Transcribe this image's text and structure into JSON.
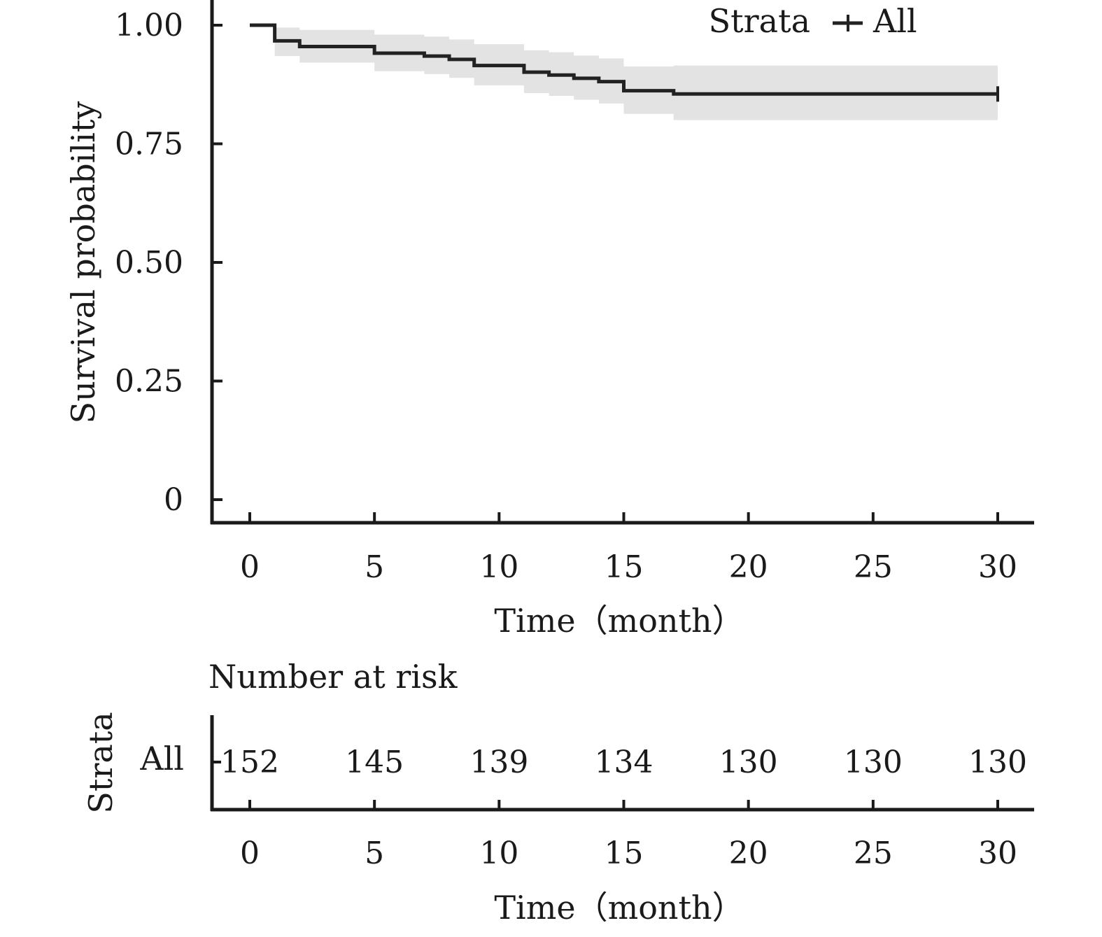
{
  "chart_data": {
    "type": "line",
    "subtype": "kaplan-meier-survival",
    "title": "",
    "xlabel": "Time（month）",
    "ylabel": "Survival probability",
    "xlim": [
      0,
      30
    ],
    "ylim": [
      0,
      1
    ],
    "x_ticks": [
      0,
      5,
      10,
      15,
      20,
      25,
      30
    ],
    "x_tick_labels": [
      "0",
      "5",
      "10",
      "15",
      "20",
      "25",
      "30"
    ],
    "y_ticks": [
      0,
      0.25,
      0.5,
      0.75,
      1.0
    ],
    "y_tick_labels": [
      "0",
      "0.25",
      "0.50",
      "0.75",
      "1.00"
    ],
    "grid": false,
    "legend": {
      "title": "Strata",
      "position": "top-right",
      "entries": [
        "All"
      ]
    },
    "colors": {
      "line": "#222222",
      "confidence_band": "#e3e3e3",
      "axis": "#1a1a1a"
    },
    "series": [
      {
        "name": "All",
        "steps": [
          {
            "x": 0,
            "y": 1.0
          },
          {
            "x": 1,
            "y": 0.967
          },
          {
            "x": 2,
            "y": 0.955
          },
          {
            "x": 5,
            "y": 0.941
          },
          {
            "x": 7,
            "y": 0.935
          },
          {
            "x": 8,
            "y": 0.928
          },
          {
            "x": 9,
            "y": 0.915
          },
          {
            "x": 11,
            "y": 0.901
          },
          {
            "x": 12,
            "y": 0.895
          },
          {
            "x": 13,
            "y": 0.888
          },
          {
            "x": 14,
            "y": 0.881
          },
          {
            "x": 15,
            "y": 0.862
          },
          {
            "x": 17,
            "y": 0.855
          },
          {
            "x": 30,
            "y": 0.855
          }
        ],
        "ci_lower": [
          1.0,
          0.935,
          0.921,
          0.903,
          0.897,
          0.889,
          0.873,
          0.857,
          0.851,
          0.843,
          0.835,
          0.813,
          0.8,
          0.8
        ],
        "ci_upper": [
          1.0,
          0.995,
          0.99,
          0.98,
          0.976,
          0.97,
          0.96,
          0.947,
          0.943,
          0.936,
          0.93,
          0.913,
          0.915,
          0.915
        ],
        "censor_marks": [
          30
        ]
      }
    ],
    "risk_table": {
      "title": "Number at risk",
      "ylabel": "Strata",
      "xlabel": "Time（month）",
      "rows": [
        {
          "label": "All",
          "times": [
            0,
            5,
            10,
            15,
            20,
            25,
            30
          ],
          "values": [
            "152",
            "145",
            "139",
            "134",
            "130",
            "130",
            "130"
          ]
        }
      ]
    }
  }
}
